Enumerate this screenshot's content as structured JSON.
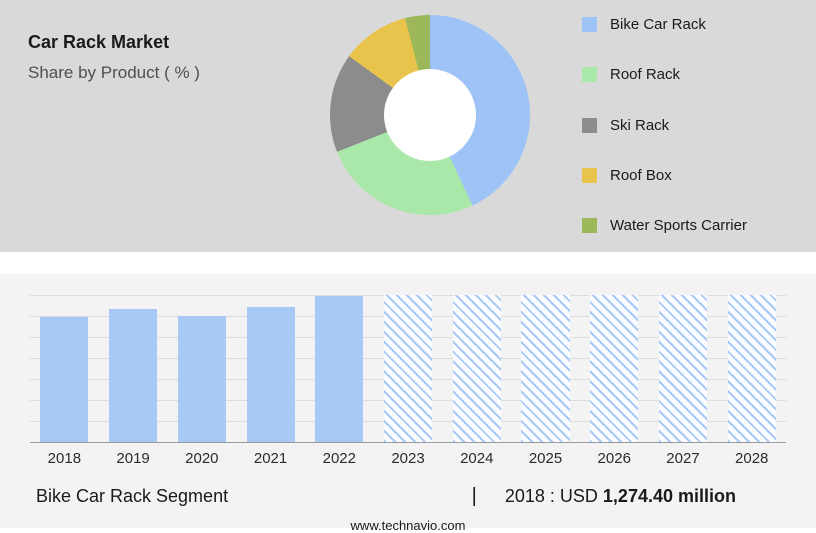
{
  "header": {
    "title": "Car Rack Market",
    "subtitle": "Share by Product ( % )"
  },
  "colors": {
    "top_bg": "#d9d9d9",
    "bottom_bg": "#f3f3f3",
    "bar_solid": "#a9c9f5"
  },
  "chart_data": [
    {
      "type": "pie",
      "title": "Car Rack Market Share by Product ( % )",
      "legend_position": "right",
      "segments": [
        {
          "label": "Bike Car Rack",
          "value_pct": 43,
          "color": "#9dc3f7"
        },
        {
          "label": "Roof Rack",
          "value_pct": 26,
          "color": "#a9e8a9"
        },
        {
          "label": "Ski Rack",
          "value_pct": 16,
          "color": "#8c8c8c"
        },
        {
          "label": "Roof Box",
          "value_pct": 11,
          "color": "#e8c44c"
        },
        {
          "label": "Water Sports Carrier",
          "value_pct": 4,
          "color": "#9cb85a"
        }
      ]
    },
    {
      "type": "bar",
      "categories": [
        "2018",
        "2019",
        "2020",
        "2021",
        "2022",
        "2023",
        "2024",
        "2025",
        "2026",
        "2027",
        "2028"
      ],
      "values": [
        1274.4,
        1356,
        1285,
        1376,
        1489,
        null,
        null,
        null,
        null,
        null,
        null
      ],
      "forecast": [
        false,
        false,
        false,
        false,
        false,
        true,
        true,
        true,
        true,
        true,
        true
      ],
      "ylim": [
        0,
        1500
      ],
      "grid": true,
      "xlabel": "",
      "ylabel": ""
    }
  ],
  "footer": {
    "segment_label": "Bike Car Rack Segment",
    "divider": "|",
    "value_prefix": "2018 : USD ",
    "value_bold": "1,274.40 million",
    "website": "www.technavio.com"
  }
}
